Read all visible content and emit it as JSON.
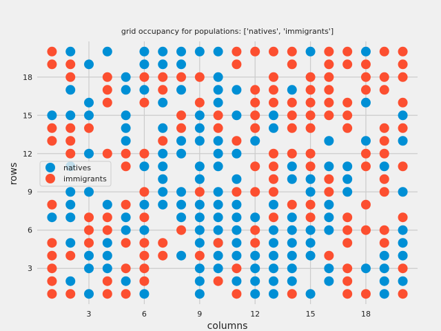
{
  "chart_data": {
    "type": "scatter",
    "title": "grid occupancy for populations: ['natives', 'immigrants']",
    "xlabel": "columns",
    "ylabel": "rows",
    "xlim": [
      0.2,
      20.8
    ],
    "ylim": [
      0.2,
      20.8
    ],
    "xticks": [
      3,
      6,
      9,
      12,
      15,
      18
    ],
    "yticks": [
      3,
      6,
      9,
      12,
      15,
      18
    ],
    "grid": true,
    "legend_position": "center-left",
    "background": "#f0f0f0",
    "grid_color": "#cbcbcb",
    "series": [
      {
        "name": "natives",
        "color": "#008fd5",
        "rows": {
          "20": [
            2,
            4,
            6,
            7,
            8,
            9,
            10,
            15,
            18
          ],
          "19": [
            3,
            6,
            7,
            8
          ],
          "18": [
            5,
            10
          ],
          "17": [
            2,
            5,
            6,
            8,
            10,
            11,
            14
          ],
          "16": [
            3,
            7,
            10,
            18
          ],
          "15": [
            1,
            2,
            3,
            5,
            9,
            11,
            13,
            20
          ],
          "14": [
            5,
            7,
            9,
            13
          ],
          "13": [
            5,
            8,
            9,
            10,
            12,
            16,
            18,
            20
          ],
          "12": [
            3,
            7,
            8,
            10,
            11
          ],
          "11": [
            2,
            6,
            7,
            9,
            10,
            14,
            16,
            17,
            19
          ],
          "10": [
            7,
            9,
            11,
            14,
            15,
            17
          ],
          "9": [
            2,
            3,
            7,
            8,
            10,
            15,
            17,
            20
          ],
          "8": [
            2,
            4,
            6,
            7,
            8,
            9,
            10,
            11,
            13,
            16
          ],
          "7": [
            1,
            2,
            5,
            8,
            9,
            10,
            11,
            12,
            14,
            16
          ],
          "6": [
            5,
            6,
            9,
            10,
            11,
            13,
            14,
            15,
            16,
            20
          ],
          "5": [
            2,
            4,
            9,
            10,
            11,
            13,
            14,
            15,
            20
          ],
          "4": [
            3,
            4,
            8,
            10,
            11,
            12,
            13,
            14,
            15,
            19,
            20
          ],
          "3": [
            3,
            4,
            9,
            10,
            12,
            13,
            14,
            16,
            18,
            19
          ],
          "2": [
            2,
            5,
            9,
            11,
            12,
            13,
            14,
            16,
            19,
            20
          ],
          "1": [
            3,
            6,
            9,
            12,
            13,
            15,
            19
          ]
        }
      },
      {
        "name": "immigrants",
        "color": "#fc4f30",
        "rows": {
          "20": [
            1,
            11,
            12,
            13,
            14,
            16,
            17,
            19,
            20
          ],
          "19": [
            1,
            2,
            11,
            14,
            16,
            17,
            18,
            20
          ],
          "18": [
            2,
            4,
            6,
            7,
            8,
            9,
            13,
            15,
            16,
            18,
            19,
            20
          ],
          "17": [
            4,
            7,
            12,
            13,
            15,
            16,
            18,
            19
          ],
          "16": [
            4,
            6,
            9,
            12,
            13,
            14,
            15,
            16,
            17,
            20
          ],
          "15": [
            8,
            10,
            12,
            14,
            15,
            16,
            17
          ],
          "14": [
            1,
            2,
            3,
            8,
            10,
            12,
            14,
            15,
            17,
            19,
            20
          ],
          "13": [
            1,
            2,
            7,
            11,
            19
          ],
          "12": [
            2,
            4,
            5,
            6,
            13,
            14,
            15,
            18,
            19
          ],
          "11": [
            5,
            12,
            13,
            15,
            18,
            20
          ],
          "10": [
            13,
            16,
            19
          ],
          "9": [
            6,
            9,
            11,
            12,
            13,
            16,
            19
          ],
          "8": [
            1,
            5,
            14,
            15,
            18
          ],
          "7": [
            3,
            4,
            6,
            13,
            15,
            17,
            20
          ],
          "6": [
            3,
            4,
            8,
            12,
            17,
            18,
            19
          ],
          "5": [
            1,
            3,
            5,
            6,
            7,
            10,
            12,
            17,
            19
          ],
          "4": [
            1,
            2,
            6,
            7,
            9,
            16
          ],
          "3": [
            1,
            5,
            6,
            11,
            17,
            20
          ],
          "2": [
            1,
            4,
            6,
            10,
            17
          ],
          "1": [
            1,
            2,
            4,
            5,
            11,
            14,
            17,
            18,
            20
          ]
        }
      }
    ]
  }
}
